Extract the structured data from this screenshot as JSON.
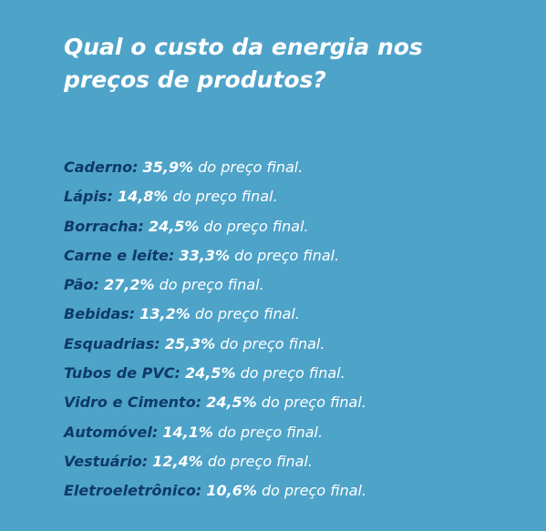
{
  "header": {
    "title_lines": [
      "Qual o custo da energia nos",
      "preços de produtos?"
    ]
  },
  "items": [
    {
      "label": "Caderno:",
      "value": "35,9%",
      "suffix": "do preço final."
    },
    {
      "label": "Lápis:",
      "value": "14,8%",
      "suffix": "do preço final."
    },
    {
      "label": "Borracha:",
      "value": "24,5%",
      "suffix": "do preço final."
    },
    {
      "label": "Carne e leite:",
      "value": "33,3%",
      "suffix": "do preço final."
    },
    {
      "label": "Pão:",
      "value": "27,2%",
      "suffix": "do preço final."
    },
    {
      "label": "Bebidas:",
      "value": "13,2%",
      "suffix": "do preço final."
    },
    {
      "label": "Esquadrias:",
      "value": "25,3%",
      "suffix": "do preço final."
    },
    {
      "label": "Tubos de PVC:",
      "value": "24,5%",
      "suffix": "do preço final."
    },
    {
      "label": "Vidro e Cimento:",
      "value": "24,5%",
      "suffix": "do preço final."
    },
    {
      "label": "Automóvel:",
      "value": "14,1%",
      "suffix": "do preço final."
    },
    {
      "label": "Vestuário:",
      "value": "12,4%",
      "suffix": "do preço final."
    },
    {
      "label": "Eletroeletrônico:",
      "value": "10,6%",
      "suffix": "do preço final."
    }
  ]
}
